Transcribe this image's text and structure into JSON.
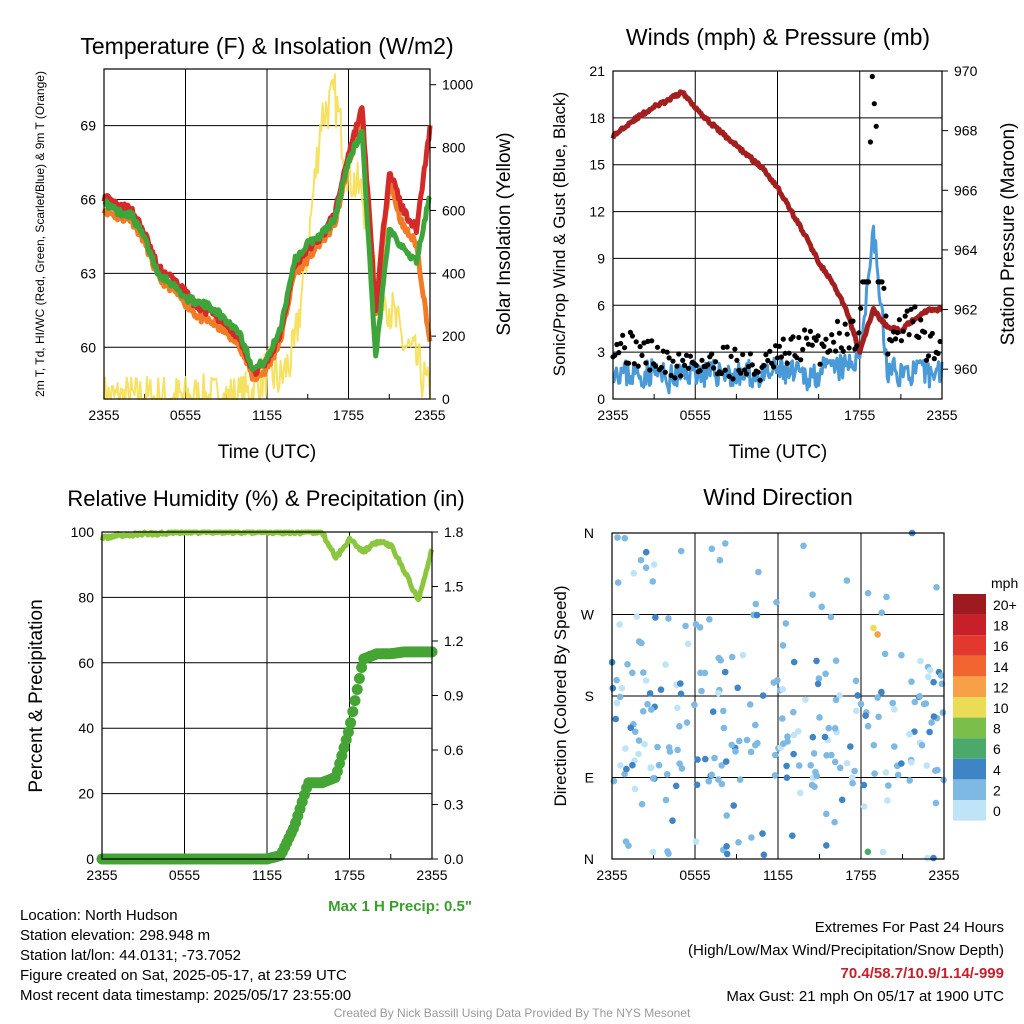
{
  "info": {
    "location": "Location: North Hudson",
    "elevation": "Station elevation: 298.948 m",
    "latlon": "Station lat/lon: 44.0131; -73.7052",
    "created": "Figure created on Sat, 2025-05-17, at 23:59 UTC",
    "recent": "Most recent data timestamp: 2025/05/17 23:55:00"
  },
  "extremes": {
    "title": "Extremes For Past 24 Hours",
    "subtitle": "(High/Low/Max Wind/Precipitation/Snow Depth)",
    "values": "70.4/58.7/10.9/1.14/-999",
    "gust": "Max Gust: 21 mph On 05/17 at 1900 UTC"
  },
  "credit": "Created By Nick Bassill Using Data Provided By The NYS Mesonet",
  "chart_data": [
    {
      "type": "line",
      "title": "Temperature (F) & Insolation (W/m2)",
      "xlabel": "Time (UTC)",
      "ylabel_left": "2m T, Td, HI/WC (Red, Green, Scarlet/Blue) & 9m T (Orange)",
      "ylabel_right": "Solar Insolation (Yellow)",
      "x_ticks": [
        "2355",
        "0555",
        "1155",
        "1755",
        "2355"
      ],
      "y_left_ticks": [
        60,
        63,
        66,
        69
      ],
      "y_left_range": [
        57.9,
        71.3
      ],
      "y_right_ticks": [
        0,
        200,
        400,
        600,
        800,
        1000
      ],
      "y_right_range": [
        0,
        1050
      ],
      "x_hours": [
        0,
        1,
        2,
        3,
        4,
        5,
        6,
        7,
        8,
        9,
        10,
        11,
        12,
        13,
        14,
        15,
        16,
        17,
        18,
        19,
        20,
        21,
        22,
        23,
        24
      ],
      "series": [
        {
          "name": "2m T",
          "color": "#d42a2a",
          "axis": "left",
          "values": [
            66.1,
            65.7,
            65.6,
            64.6,
            63.2,
            62.8,
            62.2,
            61.6,
            61.4,
            60.9,
            60.4,
            59.0,
            59.4,
            60.6,
            63.3,
            64.0,
            64.5,
            65.4,
            67.9,
            69.7,
            61.5,
            67.2,
            65.6,
            64.8,
            68.9
          ]
        },
        {
          "name": "9m T",
          "color": "#f07c28",
          "axis": "left",
          "values": [
            65.6,
            65.3,
            65.2,
            64.3,
            62.8,
            62.4,
            61.8,
            61.2,
            61.0,
            60.6,
            60.1,
            58.7,
            59.1,
            60.3,
            63.0,
            63.6,
            64.3,
            65.0,
            67.5,
            69.2,
            61.3,
            66.8,
            64.9,
            64.2,
            60.2
          ]
        },
        {
          "name": "2m Td",
          "color": "#3ea53a",
          "axis": "left",
          "values": [
            65.9,
            65.5,
            65.4,
            64.4,
            63.0,
            62.6,
            62.0,
            61.8,
            61.6,
            61.1,
            60.6,
            59.1,
            59.5,
            60.8,
            63.5,
            64.2,
            64.6,
            65.2,
            67.6,
            68.8,
            59.5,
            64.9,
            64.0,
            63.5,
            66.2
          ]
        },
        {
          "name": "Insolation",
          "color": "#f5de52",
          "axis": "right",
          "values": [
            0,
            0,
            0,
            0,
            0,
            0,
            0,
            0,
            0,
            0,
            0,
            25,
            90,
            60,
            150,
            480,
            900,
            960,
            720,
            650,
            420,
            300,
            180,
            120,
            10
          ]
        }
      ]
    },
    {
      "type": "line",
      "title": "Winds (mph) & Pressure (mb)",
      "xlabel": "Time (UTC)",
      "ylabel_left": "Sonic/Prop Wind & Gust (Blue, Black)",
      "ylabel_right": "Station Pressure (Maroon)",
      "x_ticks": [
        "2355",
        "0555",
        "1155",
        "1755",
        "2355"
      ],
      "y_left_ticks": [
        0,
        3,
        6,
        9,
        12,
        15,
        18,
        21
      ],
      "y_left_range": [
        0,
        21
      ],
      "y_right_ticks": [
        960,
        962,
        964,
        966,
        968,
        970
      ],
      "y_right_range": [
        959.0,
        970.0
      ],
      "pressure": {
        "name": "Station Pressure",
        "color": "#a31f1f",
        "values": [
          967.8,
          968.2,
          968.5,
          968.8,
          969.0,
          969.3,
          968.8,
          968.3,
          967.9,
          967.5,
          967.1,
          966.7,
          966.1,
          965.3,
          964.5,
          963.6,
          962.9,
          962.0,
          960.6,
          962.0,
          961.4,
          961.3,
          961.7,
          962.0,
          962.0
        ]
      },
      "wind": {
        "name": "Sonic Wind",
        "color": "#4a9ad8",
        "values": [
          2.0,
          1.6,
          1.5,
          1.8,
          1.2,
          1.5,
          1.9,
          1.5,
          1.8,
          1.4,
          1.6,
          1.3,
          1.9,
          1.6,
          1.4,
          1.7,
          1.9,
          2.0,
          2.8,
          10.9,
          1.8,
          1.7,
          1.7,
          1.6,
          1.8
        ]
      },
      "gust": {
        "name": "Gust",
        "color": "#000000",
        "values": [
          3.8,
          3.3,
          3.0,
          2.7,
          2.1,
          2.2,
          2.5,
          2.1,
          2.6,
          2.3,
          2.0,
          1.9,
          2.6,
          3.0,
          3.6,
          3.2,
          3.9,
          4.1,
          4.4,
          21.0,
          3.4,
          4.5,
          5.0,
          3.2,
          3.2
        ]
      }
    },
    {
      "type": "line",
      "title": "Relative Humidity (%) & Precipitation (in)",
      "ylabel_left": "Percent & Precipitation",
      "x_ticks": [
        "2355",
        "0555",
        "1155",
        "1755",
        "2355"
      ],
      "y_left_ticks": [
        0,
        20,
        40,
        60,
        80,
        100
      ],
      "y_left_range": [
        0,
        100
      ],
      "y_right_ticks": [
        "0.0",
        "0.3",
        "0.6",
        "0.9",
        "1.2",
        "1.5",
        "1.8"
      ],
      "y_right_range": [
        0,
        1.8
      ],
      "max_precip_label": "Max 1 H Precip: 0.5\"",
      "rh": {
        "name": "Relative Humidity",
        "color": "#8cc63f",
        "values": [
          98,
          99,
          99,
          99.5,
          99.5,
          100,
          100,
          100,
          100,
          100,
          100,
          100,
          100,
          100,
          100,
          100,
          100,
          92,
          98,
          94,
          97,
          96,
          88,
          79,
          95
        ]
      },
      "precip": {
        "name": "Precipitation",
        "color": "#44a534",
        "values": [
          0,
          0,
          0,
          0,
          0,
          0,
          0,
          0,
          0,
          0,
          0,
          0,
          0,
          0.02,
          0.18,
          0.42,
          0.42,
          0.45,
          0.72,
          1.1,
          1.13,
          1.13,
          1.14,
          1.14,
          1.14
        ]
      }
    },
    {
      "type": "scatter",
      "title": "Wind Direction",
      "ylabel": "Direction (Colored By Speed)",
      "x_ticks": [
        "2355",
        "0555",
        "1155",
        "1755",
        "2355"
      ],
      "y_ticks": [
        "N",
        "E",
        "S",
        "W",
        "N"
      ],
      "y_range_deg": [
        0,
        360
      ],
      "colorbar": {
        "title": "mph",
        "labels": [
          "20+",
          "18",
          "16",
          "14",
          "12",
          "10",
          "8",
          "6",
          "4",
          "2",
          "0"
        ],
        "colors": [
          "#9e1a1e",
          "#c8202a",
          "#e2382e",
          "#f26430",
          "#f7a047",
          "#ebdc55",
          "#7bbf4a",
          "#4aa96b",
          "#3f84c4",
          "#7db9e3",
          "#bfe4f7"
        ]
      },
      "points_sample": [
        {
          "h": 0.4,
          "dir": 355,
          "speed": 2
        },
        {
          "h": 2.1,
          "dir": 330,
          "speed": 1
        },
        {
          "h": 5.0,
          "dir": 340,
          "speed": 1
        },
        {
          "h": 7.8,
          "dir": 330,
          "speed": 2
        },
        {
          "h": 18.9,
          "dir": 255,
          "speed": 10
        },
        {
          "h": 19.2,
          "dir": 248,
          "speed": 11
        },
        {
          "h": 21.7,
          "dir": 360,
          "speed": 3
        },
        {
          "h": 18.5,
          "dir": 8,
          "speed": 5
        }
      ]
    }
  ]
}
